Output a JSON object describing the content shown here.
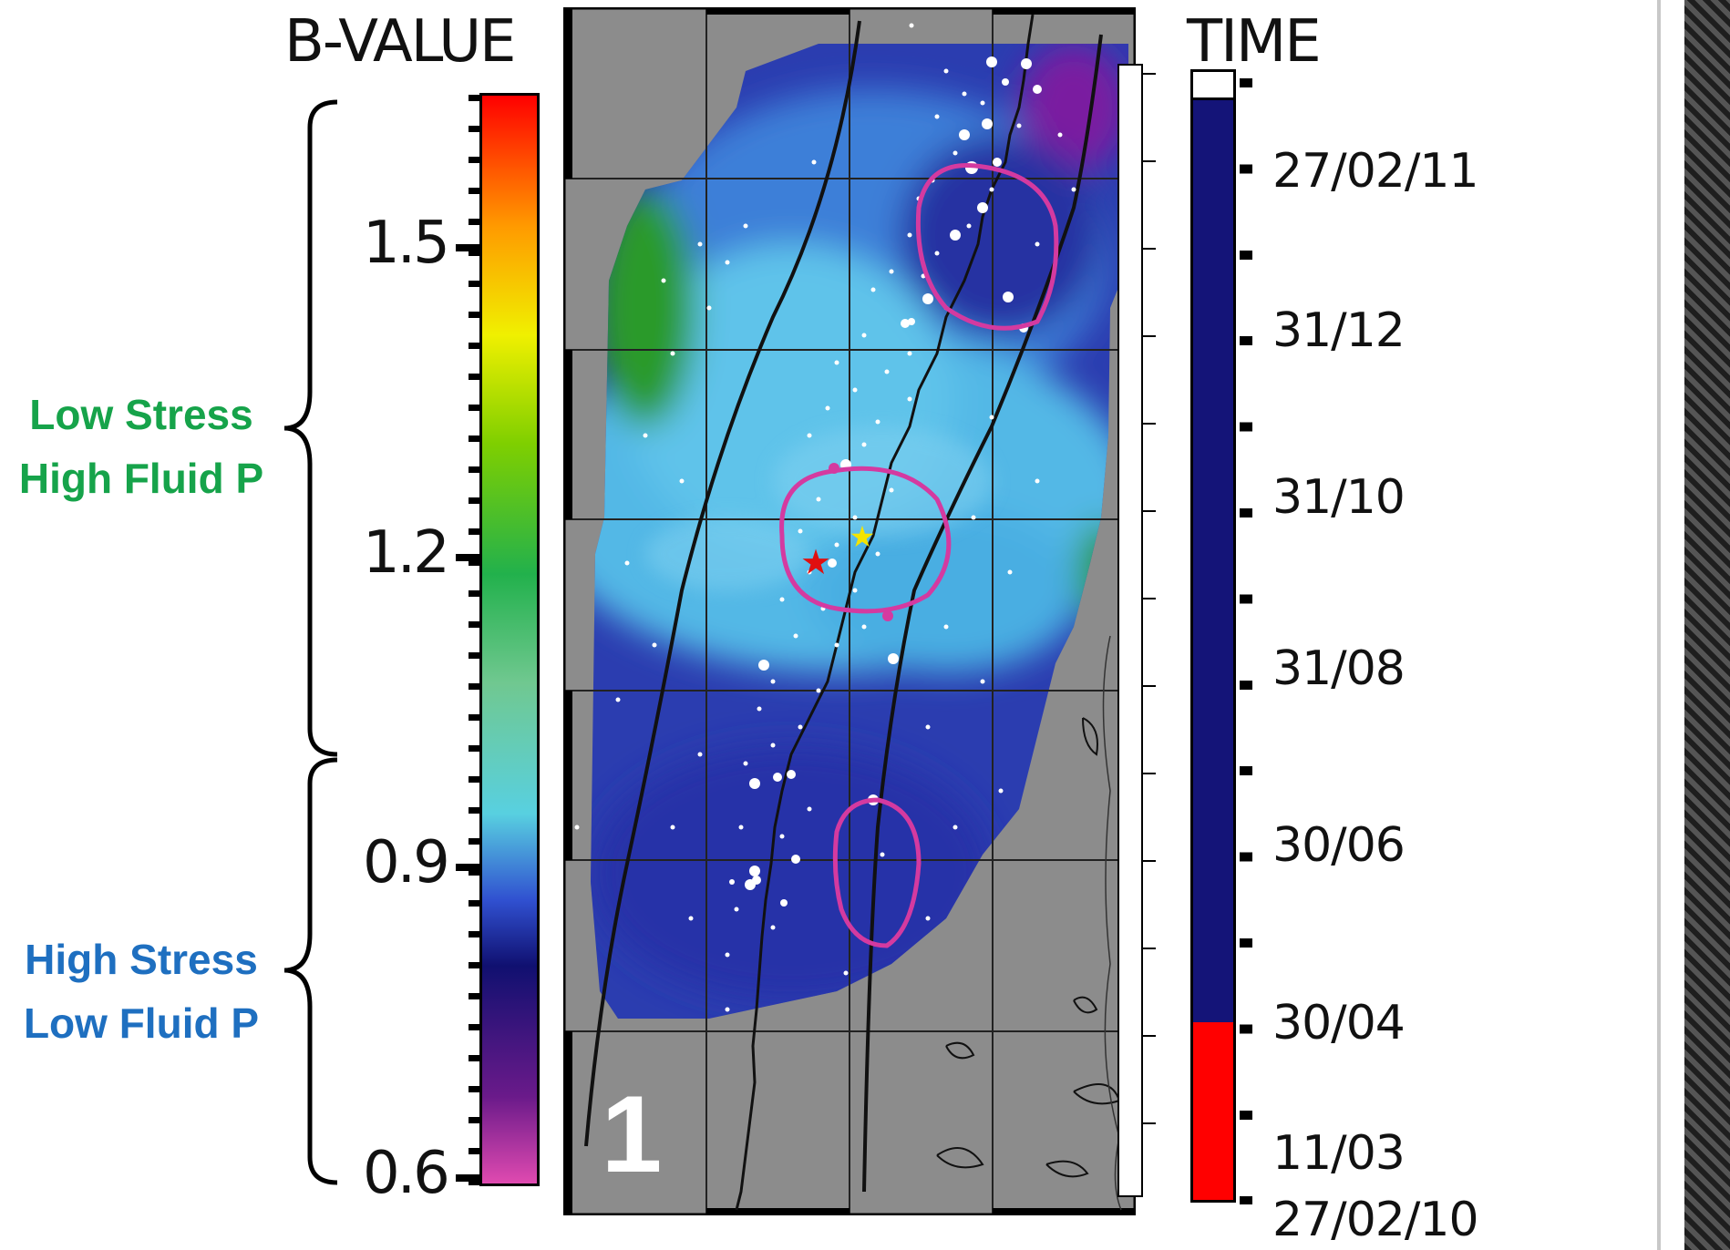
{
  "bvalue_scale": {
    "title": "B-VALUE",
    "ticks": [
      "1.5",
      "1.2",
      "0.9",
      "0.6"
    ],
    "tick_values": [
      1.5,
      1.2,
      0.9,
      0.6
    ],
    "range": [
      0.6,
      1.65
    ],
    "gradient_colors": [
      "#ff0000",
      "#ff9a00",
      "#f0f000",
      "#7fcf00",
      "#22b14c",
      "#70c890",
      "#58d0e0",
      "#3050d0",
      "#101070",
      "#6a1a8a",
      "#e04ab0"
    ]
  },
  "annotations": {
    "low_stress": {
      "line1": "Low Stress",
      "line2": "High Fluid P",
      "color": "#16a34a"
    },
    "high_stress": {
      "line1": "High Stress",
      "line2": "Low Fluid P",
      "color": "#1e6fc0"
    }
  },
  "map": {
    "panel_label": "1",
    "background_color": "#8c8c8c",
    "dominant_colors": [
      "#2b3db0",
      "#4fb6e6",
      "#2a9a2a",
      "#7a1ea0"
    ],
    "ellipse_color": "#d43aa0",
    "markers": {
      "red_star": {
        "symbol": "★",
        "color": "#e01010"
      },
      "yellow_star": {
        "symbol": "★",
        "color": "#f4e400"
      }
    }
  },
  "time_scale": {
    "title": "TIME",
    "labels": [
      "27/02/11",
      "31/12",
      "31/10",
      "31/08",
      "30/06",
      "30/04",
      "11/03",
      "27/02/10"
    ],
    "colors": {
      "top": "#ffffff",
      "main": "#141478",
      "bottom": "#ff0000"
    }
  }
}
